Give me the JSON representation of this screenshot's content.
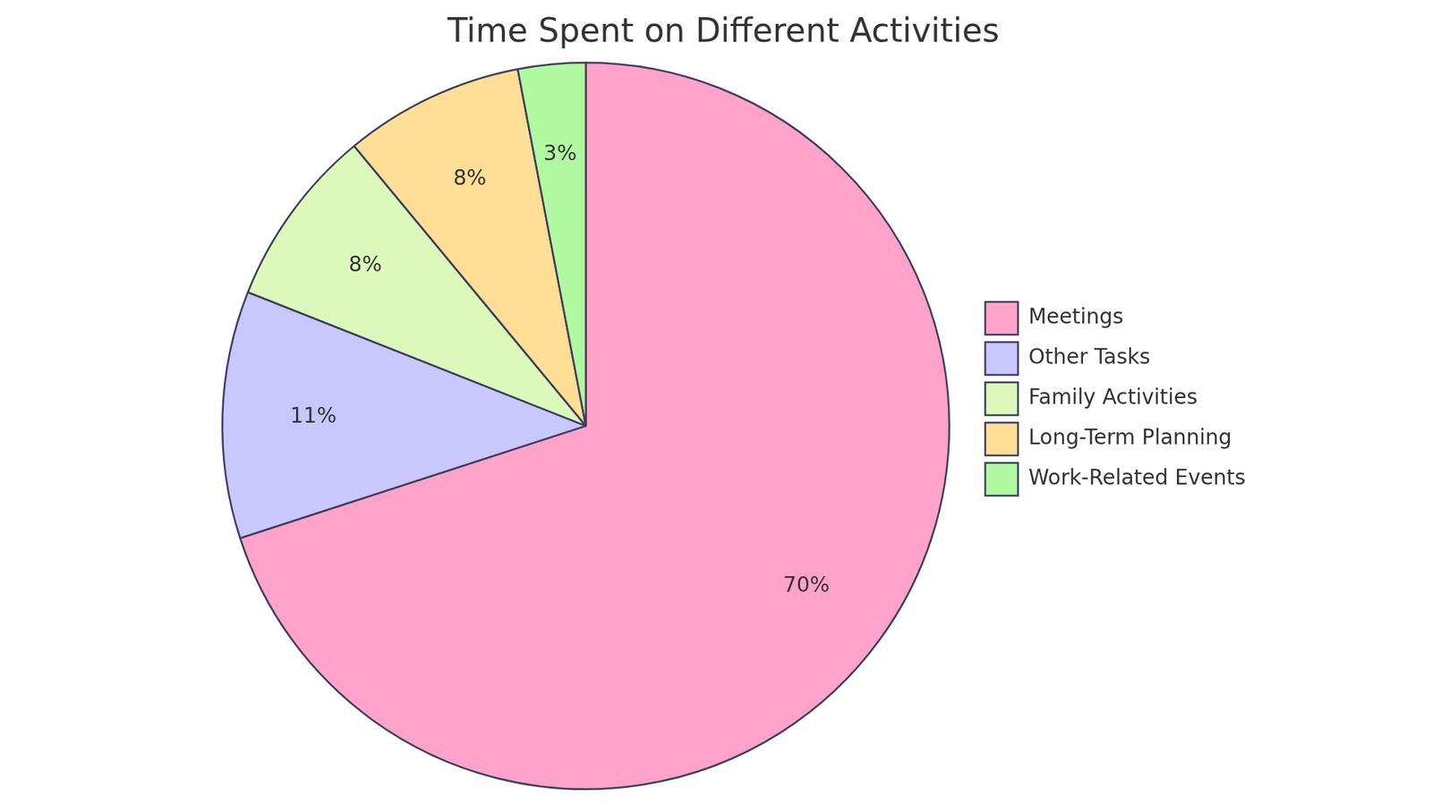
{
  "chart_data": {
    "type": "pie",
    "title": "Time Spent on Different Activities",
    "categories": [
      "Meetings",
      "Other Tasks",
      "Family Activities",
      "Long-Term Planning",
      "Work-Related Events"
    ],
    "values": [
      70,
      11,
      8,
      8,
      3
    ],
    "value_labels": [
      "70%",
      "11%",
      "8%",
      "8%",
      "3%"
    ],
    "colors": [
      "#ffa3cb",
      "#c8c8ff",
      "#dcf9bb",
      "#ffde96",
      "#b1f9a1"
    ],
    "legend": "right",
    "data_labels": true
  }
}
